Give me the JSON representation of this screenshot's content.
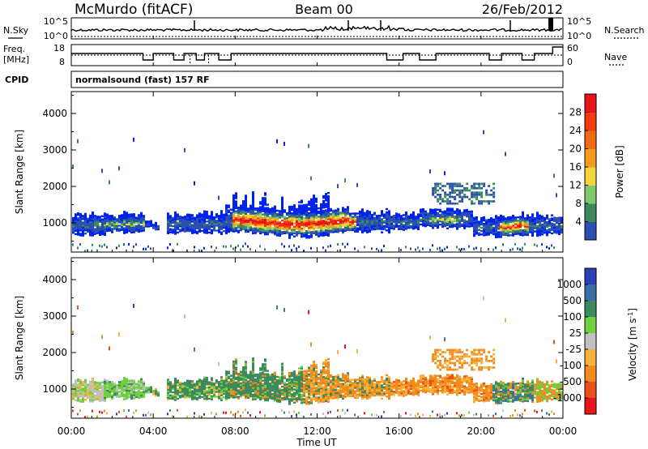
{
  "header": {
    "title": "McMurdo (fitACF)",
    "beam": "Beam 00",
    "date": "26/Feb/2012"
  },
  "top_panels": {
    "nsky_label": "N.Sky",
    "nsearch_label": "N.Search",
    "nsky_ticks": [
      "10^5",
      "10^0"
    ],
    "nsearch_ticks": [
      "10^5",
      "10^0"
    ],
    "freq_label_1": "Freq.",
    "freq_label_2": "[MHz]",
    "freq_ticks": [
      "18",
      "8"
    ],
    "nave_label": "Nave",
    "nave_ticks": [
      "60",
      "0"
    ],
    "cpid_label": "CPID",
    "cpid_text": "normalsound (fast) 157 RF"
  },
  "colors": {
    "power_scale": [
      "#0022ee",
      "#2a4fb0",
      "#3d8a5e",
      "#7fc96a",
      "#f2d33b",
      "#f59a1f",
      "#f06a10",
      "#f23a10",
      "#e8141a"
    ],
    "velocity_scale": [
      "#2a3fb8",
      "#3a6fa8",
      "#3d8a5e",
      "#6fcf3f",
      "#c0c0c0",
      "#f6b23a",
      "#f28b1e",
      "#e8501a",
      "#e8141a"
    ]
  },
  "chart_data": [
    {
      "type": "heatmap",
      "title": "",
      "xlabel": "",
      "ylabel": "Slant Range [km]",
      "x_ticks": [
        "00:00",
        "04:00",
        "08:00",
        "12:00",
        "16:00",
        "20:00",
        "00:00"
      ],
      "y_ticks": [
        "1000",
        "2000",
        "3000",
        "4000"
      ],
      "ylim": [
        200,
        4600
      ],
      "colorbar": {
        "label": "Power [dB]",
        "ticks": [
          "4",
          "8",
          "12",
          "16",
          "20",
          "24",
          "28"
        ],
        "range": [
          0,
          30
        ]
      }
    },
    {
      "type": "heatmap",
      "title": "",
      "xlabel": "Time UT",
      "ylabel": "Slant Range [km]",
      "x_ticks": [
        "00:00",
        "04:00",
        "08:00",
        "12:00",
        "16:00",
        "20:00",
        "00:00"
      ],
      "y_ticks": [
        "1000",
        "2000",
        "3000",
        "4000"
      ],
      "ylim": [
        200,
        4600
      ],
      "colorbar": {
        "label": "Velocity [m s",
        "label_sup": "-1",
        "label_end": "]",
        "ticks": [
          "1000",
          "500",
          "100",
          "25",
          "-25",
          "-100",
          "-500",
          "-1000"
        ]
      }
    }
  ]
}
